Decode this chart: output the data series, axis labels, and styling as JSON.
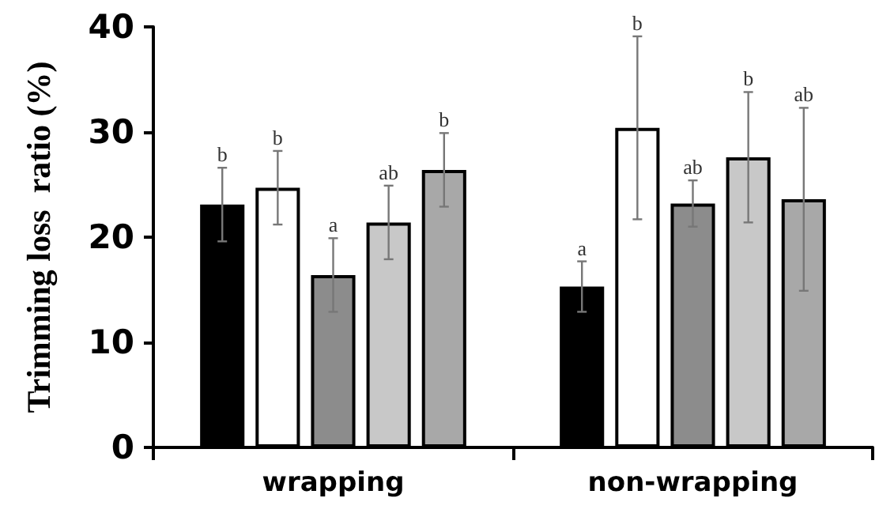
{
  "chart_data": {
    "type": "bar",
    "ylabel": "Trimming loss  ratio (%)",
    "categories": [
      "wrapping",
      "non-wrapping"
    ],
    "series": [
      {
        "color": "#000000",
        "values": [
          23.1,
          15.3
        ],
        "errors": [
          3.5,
          2.4
        ]
      },
      {
        "color": "#ffffff",
        "values": [
          24.7,
          30.4
        ],
        "errors": [
          3.5,
          8.7
        ]
      },
      {
        "color": "#8c8c8c",
        "values": [
          16.4,
          23.2
        ],
        "errors": [
          3.5,
          2.2
        ]
      },
      {
        "color": "#c8c8c8",
        "values": [
          21.4,
          27.6
        ],
        "errors": [
          3.5,
          6.2
        ]
      },
      {
        "color": "#a8a8a8",
        "values": [
          26.4,
          23.6
        ],
        "errors": [
          3.5,
          8.7
        ]
      }
    ],
    "annotations": [
      "b",
      "b",
      "a",
      "ab",
      "b",
      "a",
      "b",
      "ab",
      "b",
      "ab"
    ],
    "ylim": [
      0,
      40
    ],
    "yticks": [
      0,
      10,
      20,
      30,
      40
    ],
    "grid": false
  }
}
